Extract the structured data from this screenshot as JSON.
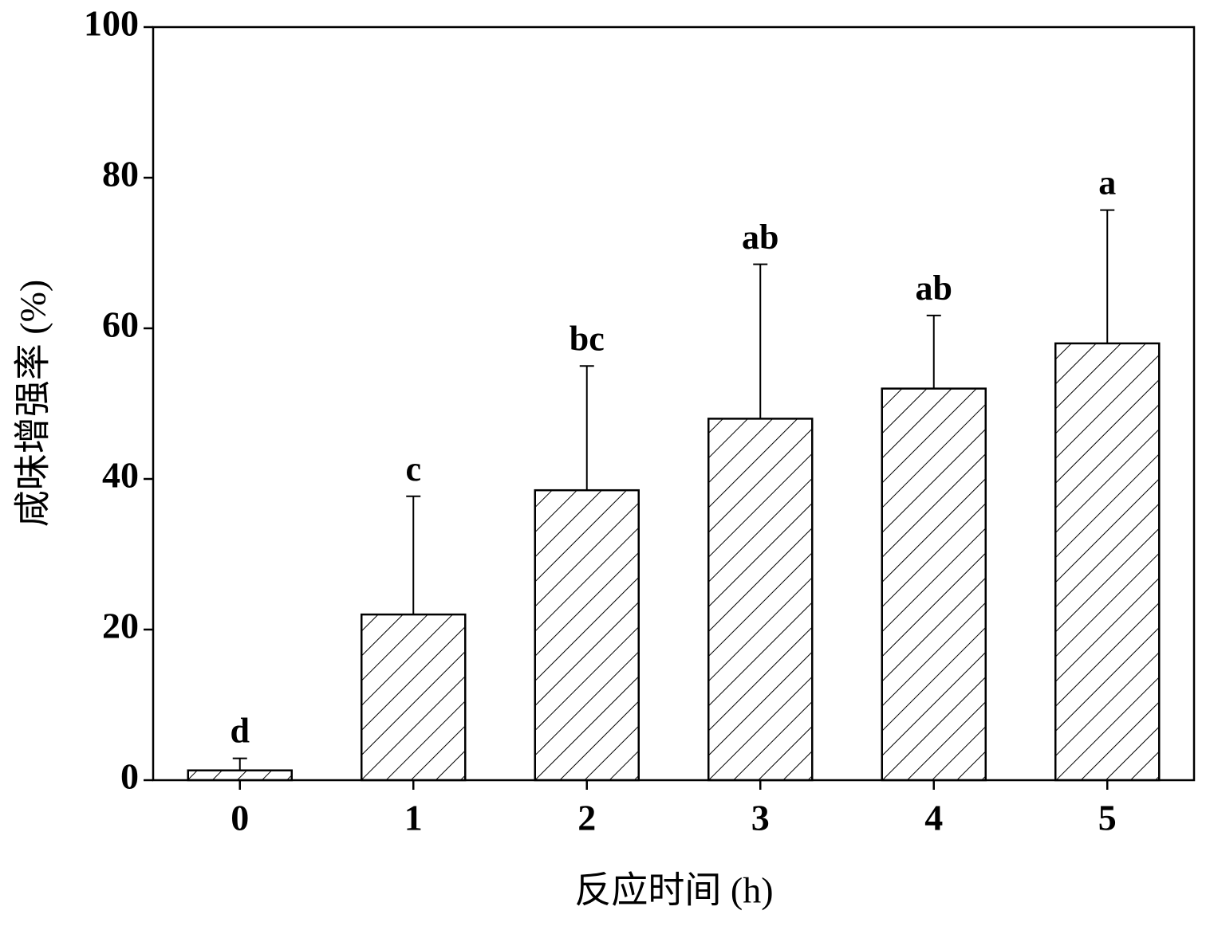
{
  "chart_data": {
    "type": "bar",
    "x_label": "反应时间 (h)",
    "y_label": "咸味增强率 (%)",
    "categories": [
      "0",
      "1",
      "2",
      "3",
      "4",
      "5"
    ],
    "values": [
      1.3,
      22,
      38.5,
      48,
      52,
      58
    ],
    "errors": [
      1.6,
      15.7,
      16.5,
      20.5,
      9.7,
      17.7
    ],
    "significance": [
      "d",
      "c",
      "bc",
      "ab",
      "ab",
      "a"
    ],
    "color": "#000000",
    "ylim": [
      0,
      100
    ],
    "yticks": [
      0,
      20,
      40,
      60,
      80,
      100
    ],
    "grid": false
  }
}
